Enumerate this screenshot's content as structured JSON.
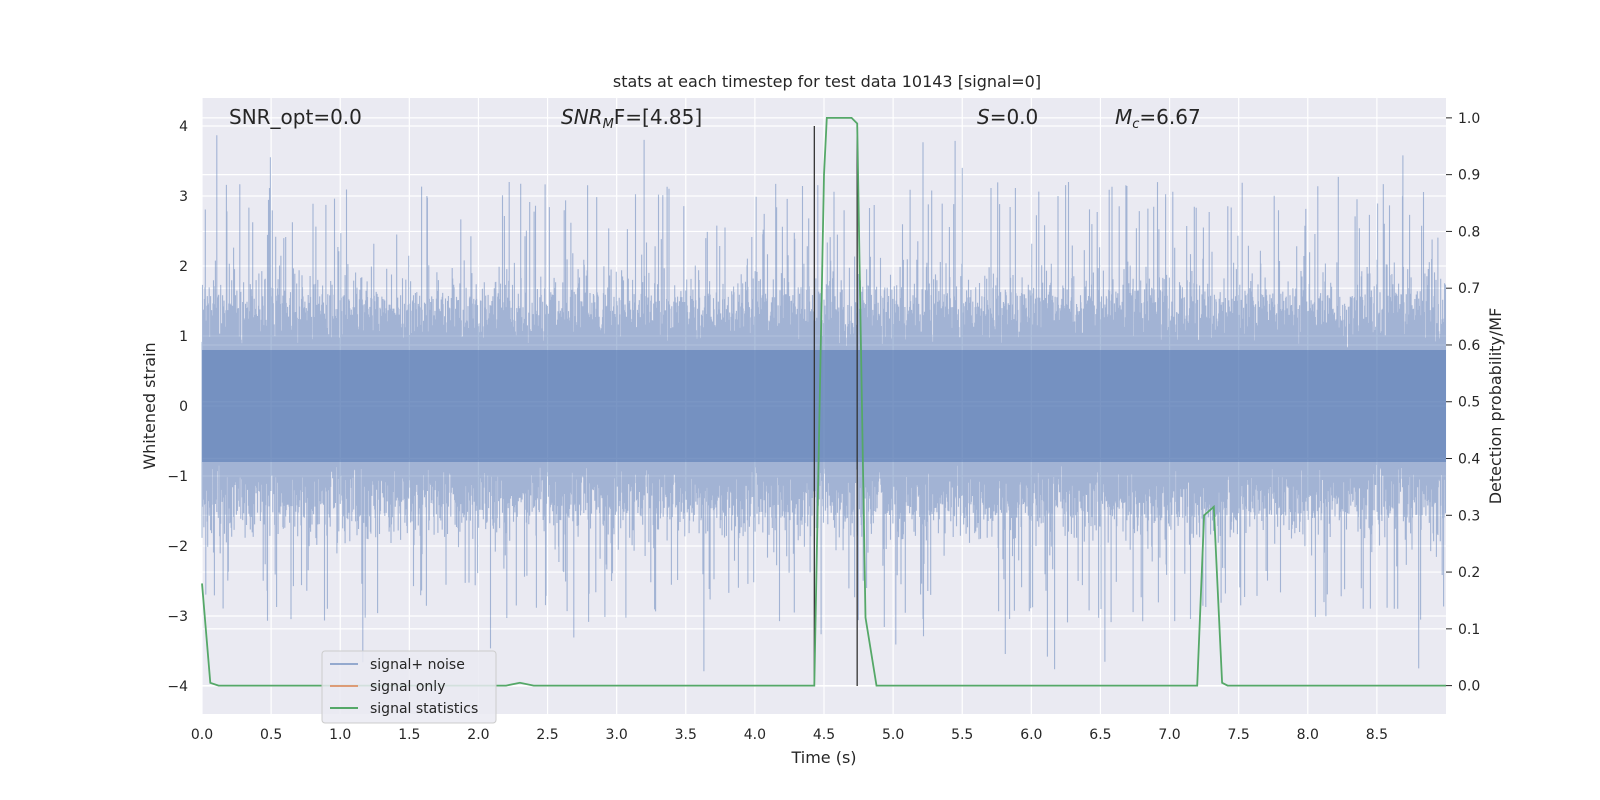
{
  "chart_data": {
    "type": "line",
    "title": "stats at each timestep for test data 10143 [signal=0]",
    "xlabel": "Time (s)",
    "ylabel_left": "Whitened strain",
    "ylabel_right": "Detection probability/MF",
    "xlim": [
      0.0,
      9.0
    ],
    "ylim_left": [
      -4.4,
      4.4
    ],
    "ylim_right": [
      -0.05,
      1.035
    ],
    "xticks": [
      "0.0",
      "0.5",
      "1.0",
      "1.5",
      "2.0",
      "2.5",
      "3.0",
      "3.5",
      "4.0",
      "4.5",
      "5.0",
      "5.5",
      "6.0",
      "6.5",
      "7.0",
      "7.5",
      "8.0",
      "8.5"
    ],
    "yticks_left": [
      "−4",
      "−3",
      "−2",
      "−1",
      "0",
      "1",
      "2",
      "3",
      "4"
    ],
    "yticks_right": [
      "0.0",
      "0.1",
      "0.2",
      "0.3",
      "0.4",
      "0.5",
      "0.6",
      "0.7",
      "0.8",
      "0.9",
      "1.0"
    ],
    "grid": true,
    "legend_position": "lower-left",
    "annotations": {
      "snr_opt": "SNR_opt=0.0",
      "snr_mf_base": "SNR",
      "snr_mf_sub": "M",
      "snr_mf_rest": "F=[4.85]",
      "s_base": "S",
      "s_rest": "=0.0",
      "mc_base": "M",
      "mc_sub": "c",
      "mc_rest": "=6.67"
    },
    "vertical_lines_x": [
      4.43,
      4.74
    ],
    "series": [
      {
        "name": "signal+ noise",
        "axis": "left",
        "color": "#4c72b0",
        "description_style": "dense noise trace",
        "envelope": {
          "core_abs": 0.8,
          "typical_abs_high": 2.0,
          "peak_max": 4.0,
          "peak_min": -4.0
        }
      },
      {
        "name": "signal only",
        "axis": "left",
        "color": "#dd8452",
        "x": [],
        "y": []
      },
      {
        "name": "signal statistics",
        "axis": "right",
        "color": "#55a868",
        "x": [
          0.0,
          0.06,
          0.12,
          2.2,
          2.3,
          2.4,
          4.43,
          4.5,
          4.52,
          4.6,
          4.7,
          4.74,
          4.8,
          4.88,
          7.2,
          7.25,
          7.32,
          7.38,
          7.42,
          9.0
        ],
        "y": [
          0.18,
          0.005,
          0.0,
          0.0,
          0.005,
          0.0,
          0.0,
          0.9,
          1.0,
          1.0,
          1.0,
          0.99,
          0.12,
          0.0,
          0.0,
          0.3,
          0.315,
          0.005,
          0.0,
          0.0
        ]
      }
    ]
  }
}
